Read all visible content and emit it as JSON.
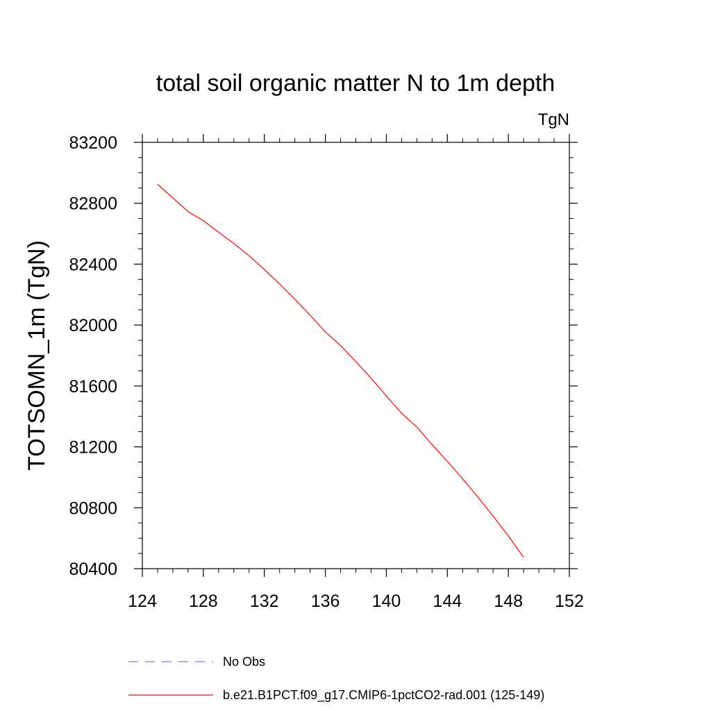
{
  "chart_data": {
    "type": "line",
    "title": "total soil organic matter N to 1m depth",
    "units_label": "TgN",
    "xlabel": "",
    "ylabel": "TOTSOMN_1m  (TgN)",
    "xlim": [
      124,
      152
    ],
    "ylim": [
      80400,
      83200
    ],
    "xticks": [
      "124",
      "128",
      "132",
      "136",
      "140",
      "144",
      "148",
      "152"
    ],
    "yticks": [
      "80400",
      "80800",
      "81200",
      "81600",
      "82000",
      "82400",
      "82800",
      "83200"
    ],
    "grid": false,
    "legend_position": "bottom",
    "series": [
      {
        "name": "No Obs",
        "color": "#7b7bd6",
        "dashed": true,
        "x": [],
        "y": []
      },
      {
        "name": "b.e21.B1PCT.f09_g17.CMIP6-1pctCO2-rad.001 (125-149)",
        "color": "#ff0000",
        "dashed": false,
        "x": [
          125,
          126,
          127,
          128,
          129,
          130,
          131,
          132,
          133,
          134,
          135,
          136,
          137,
          138,
          139,
          140,
          141,
          142,
          143,
          144,
          145,
          146,
          147,
          148,
          149
        ],
        "y": [
          82925,
          82835,
          82745,
          82685,
          82610,
          82535,
          82455,
          82365,
          82270,
          82170,
          82065,
          81955,
          81865,
          81760,
          81650,
          81535,
          81420,
          81330,
          81215,
          81105,
          80990,
          80870,
          80745,
          80615,
          80475
        ]
      }
    ]
  }
}
